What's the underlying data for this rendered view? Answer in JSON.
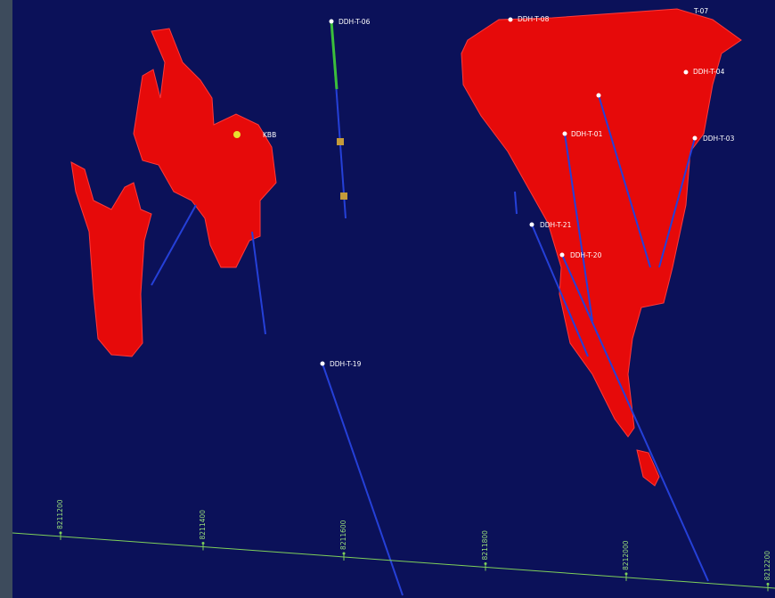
{
  "holes": [
    {
      "label": "DDH-T-06"
    },
    {
      "label": "DDH-T-08"
    },
    {
      "label": "T-07"
    },
    {
      "label": "DDH-T-04"
    },
    {
      "label": "DDH-T-01"
    },
    {
      "label": "DDH-T-03"
    },
    {
      "label": "DDH-T-21"
    },
    {
      "label": "DDH-T-20"
    },
    {
      "label": "DDH-T-19"
    },
    {
      "label": "KBB"
    }
  ],
  "grid_labels": [
    "8211200",
    "8211400",
    "8211600",
    "8211800",
    "8212000",
    "8212200"
  ]
}
